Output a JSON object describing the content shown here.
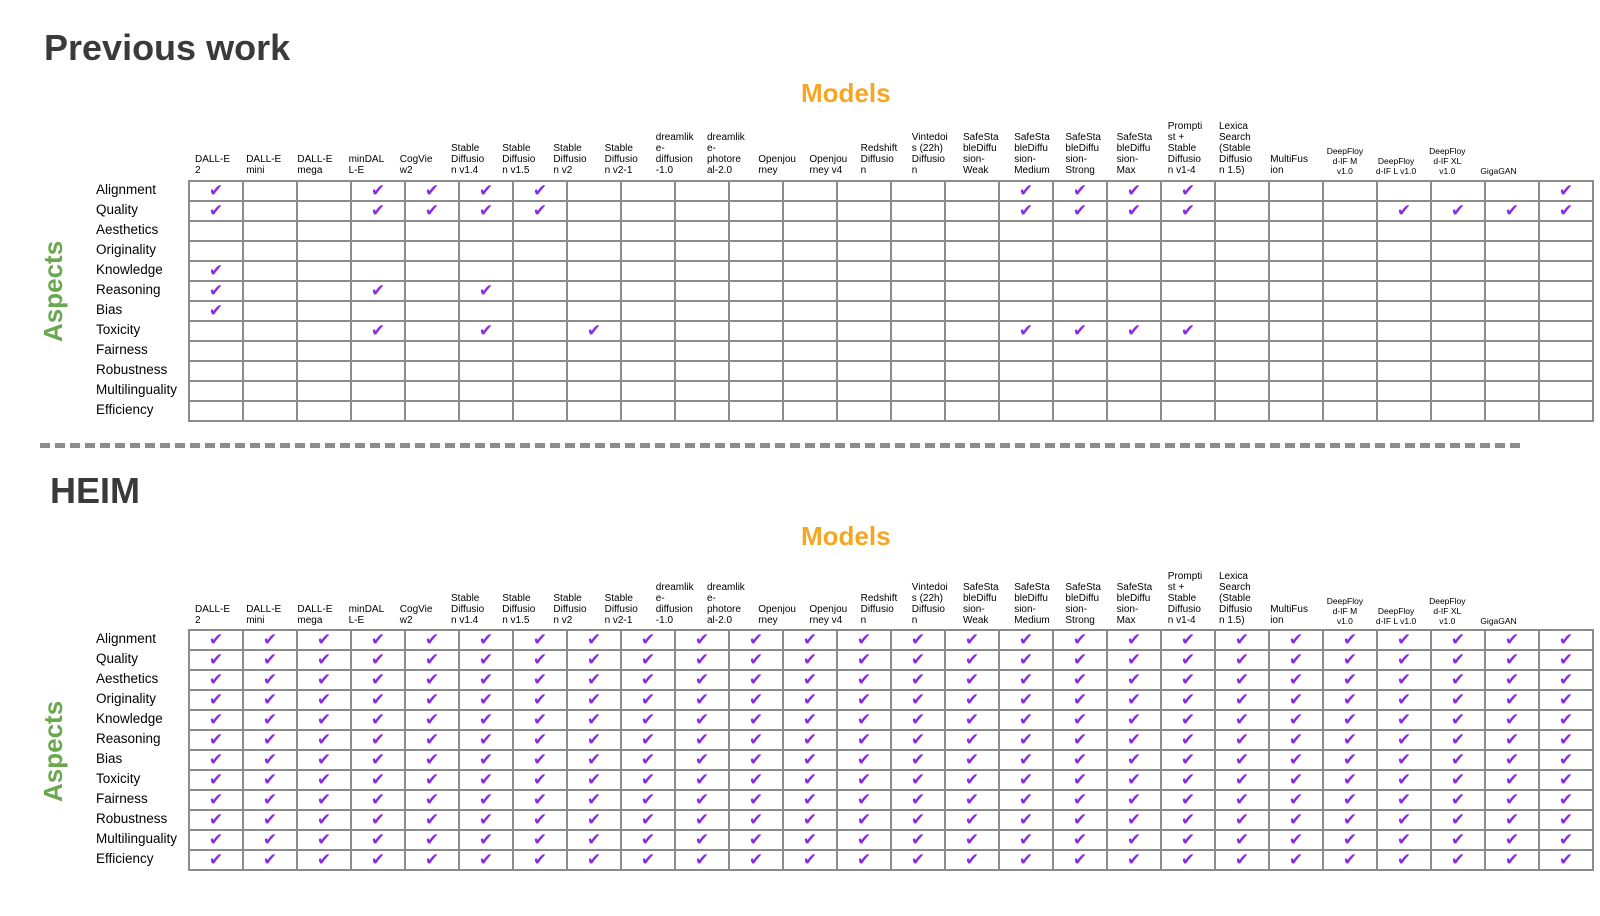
{
  "models": [
    "DALL-E\n2",
    "DALL-E\nmini",
    "DALL-E\nmega",
    "minDAL\nL-E",
    "CogVie\nw2",
    "Stable\nDiffusio\nn v1.4",
    "Stable\nDiffusio\nn v1.5",
    "Stable\nDiffusio\nn v2",
    "Stable\nDiffusio\nn v2-1",
    "dreamlik\ne-\ndiffusion\n-1.0",
    "dreamlik\ne-\nphotore\nal-2.0",
    "Openjou\nrney",
    "Openjou\nrney v4",
    "Redshift\nDiffusio\nn",
    "Vintedoi\ns (22h)\nDiffusio\nn",
    "SafeSta\nbleDiffu\nsion-\nWeak",
    "SafeSta\nbleDiffu\nsion-\nMedium",
    "SafeSta\nbleDiffu\nsion-\nStrong",
    "SafeSta\nbleDiffu\nsion-\nMax",
    "Prompti\nst +\nStable\nDiffusio\nn v1-4",
    "Lexica\nSearch\n(Stable\nDiffusio\nn 1.5)",
    "MultiFus\nion",
    "DeepFloy\nd-IF M\nv1.0",
    "DeepFloy\nd-IF L v1.0",
    "DeepFloy\nd-IF XL\nv1.0",
    "GigaGAN"
  ],
  "aspects": [
    "Alignment",
    "Quality",
    "Aesthetics",
    "Originality",
    "Knowledge",
    "Reasoning",
    "Bias",
    "Toxicity",
    "Fairness",
    "Robustness",
    "Multilinguality",
    "Efficiency"
  ],
  "check_mark": "✔",
  "colors": {
    "check": "#8a2be2",
    "models_title": "#f5a623",
    "aspects_title": "#6aa84f",
    "grid": "#8c8c8c"
  },
  "sections": [
    {
      "title": "Previous work",
      "models_label": "Models",
      "aspects_label": "Aspects",
      "coverage": {
        "Alignment": [
          0,
          3,
          4,
          5,
          6,
          15,
          16,
          17,
          18,
          25
        ],
        "Quality": [
          0,
          3,
          4,
          5,
          6,
          15,
          16,
          17,
          18,
          22,
          23,
          24,
          25
        ],
        "Aesthetics": [],
        "Originality": [],
        "Knowledge": [
          0
        ],
        "Reasoning": [
          0,
          3,
          5
        ],
        "Bias": [
          0
        ],
        "Toxicity": [
          3,
          5,
          7,
          15,
          16,
          17,
          18
        ],
        "Fairness": [],
        "Robustness": [],
        "Multilinguality": [],
        "Efficiency": []
      }
    },
    {
      "title": "HEIM",
      "models_label": "Models",
      "aspects_label": "Aspects",
      "coverage": "all"
    }
  ]
}
